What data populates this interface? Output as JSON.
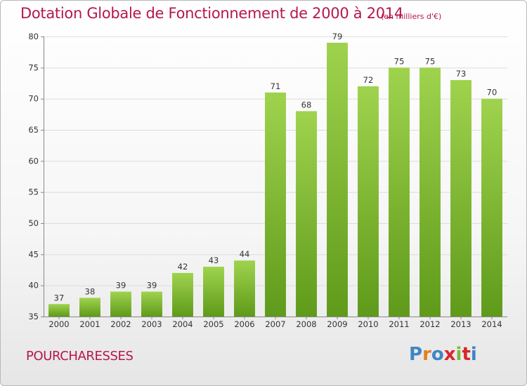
{
  "header": {
    "title": "Dotation Globale de Fonctionnement de 2000 à 2014",
    "unit": "(en milliers d'€)"
  },
  "footer": {
    "commune": "POURCHARESSES",
    "logo": "Proxiti"
  },
  "colors": {
    "accent": "#b5174e",
    "bar_top": "#9fd34e",
    "bar_bottom": "#5f9a1a",
    "logo_letters": [
      "#3d86c6",
      "#e67e22",
      "#3d86c6",
      "#d7262d",
      "#7bb83a",
      "#d7262d",
      "#3d86c6"
    ]
  },
  "chart_data": {
    "type": "bar",
    "title": "Dotation Globale de Fonctionnement de 2000 à 2014",
    "subtitle": "(en milliers d'€)",
    "xlabel": "",
    "ylabel": "",
    "categories": [
      "2000",
      "2001",
      "2002",
      "2003",
      "2004",
      "2005",
      "2006",
      "2007",
      "2008",
      "2009",
      "2010",
      "2011",
      "2012",
      "2013",
      "2014"
    ],
    "values": [
      37,
      38,
      39,
      39,
      42,
      43,
      44,
      71,
      68,
      79,
      72,
      75,
      75,
      73,
      70
    ],
    "ylim": [
      35,
      80
    ],
    "yticks": [
      35,
      40,
      45,
      50,
      55,
      60,
      65,
      70,
      75,
      80
    ],
    "grid": true,
    "legend": "none"
  }
}
